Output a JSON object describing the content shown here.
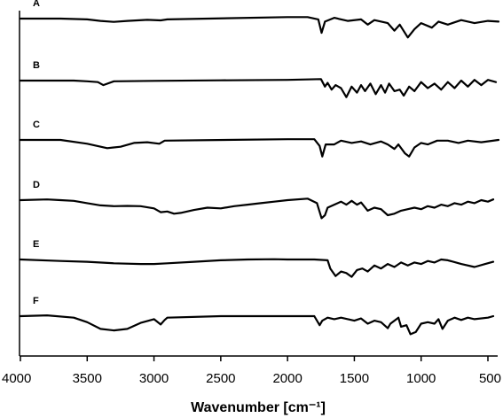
{
  "chart_data": {
    "type": "line",
    "title": "",
    "xlabel": "Wavenumber [cm⁻¹]",
    "ylabel": "",
    "xlim": [
      4000,
      400
    ],
    "x_reversed": true,
    "x_ticks": [
      4000,
      3500,
      3000,
      2500,
      2000,
      1500,
      1000,
      500
    ],
    "x_tick_labels": [
      "4000",
      "3500",
      "3000",
      "2500",
      "2000",
      "1500",
      "1000",
      "500"
    ],
    "grid": false,
    "legend": "none",
    "series": [
      {
        "name": "A",
        "points": [
          [
            4000,
            0.0
          ],
          [
            3700,
            0.0
          ],
          [
            3500,
            -0.05
          ],
          [
            3400,
            -0.15
          ],
          [
            3300,
            -0.22
          ],
          [
            3200,
            -0.15
          ],
          [
            3050,
            -0.08
          ],
          [
            2950,
            -0.12
          ],
          [
            2900,
            -0.05
          ],
          [
            2000,
            0.1
          ],
          [
            1850,
            0.1
          ],
          [
            1770,
            -0.05
          ],
          [
            1745,
            -0.95
          ],
          [
            1720,
            -0.2
          ],
          [
            1650,
            0.05
          ],
          [
            1550,
            -0.15
          ],
          [
            1450,
            -0.05
          ],
          [
            1400,
            -0.4
          ],
          [
            1350,
            -0.1
          ],
          [
            1250,
            -0.3
          ],
          [
            1200,
            -0.8
          ],
          [
            1160,
            -0.4
          ],
          [
            1100,
            -1.25
          ],
          [
            1050,
            -0.7
          ],
          [
            1000,
            -0.3
          ],
          [
            920,
            -0.6
          ],
          [
            870,
            -0.2
          ],
          [
            800,
            -0.4
          ],
          [
            700,
            -0.1
          ],
          [
            600,
            -0.3
          ],
          [
            500,
            -0.15
          ],
          [
            420,
            -0.2
          ]
        ]
      },
      {
        "name": "B",
        "points": [
          [
            4000,
            0.0
          ],
          [
            3600,
            0.0
          ],
          [
            3500,
            -0.05
          ],
          [
            3420,
            -0.1
          ],
          [
            3380,
            -0.3
          ],
          [
            3300,
            -0.05
          ],
          [
            3000,
            -0.02
          ],
          [
            2500,
            0.02
          ],
          [
            2000,
            0.05
          ],
          [
            1750,
            0.1
          ],
          [
            1720,
            -0.4
          ],
          [
            1700,
            -0.15
          ],
          [
            1670,
            -0.6
          ],
          [
            1640,
            -0.3
          ],
          [
            1600,
            -0.5
          ],
          [
            1560,
            -1.1
          ],
          [
            1520,
            -0.4
          ],
          [
            1480,
            -0.8
          ],
          [
            1450,
            -0.3
          ],
          [
            1420,
            -0.7
          ],
          [
            1380,
            -0.2
          ],
          [
            1340,
            -0.9
          ],
          [
            1300,
            -0.3
          ],
          [
            1270,
            -0.8
          ],
          [
            1240,
            -0.2
          ],
          [
            1200,
            -0.7
          ],
          [
            1160,
            -0.6
          ],
          [
            1130,
            -1.0
          ],
          [
            1090,
            -0.4
          ],
          [
            1050,
            -0.7
          ],
          [
            1000,
            -0.1
          ],
          [
            950,
            -0.5
          ],
          [
            900,
            -0.2
          ],
          [
            850,
            -0.6
          ],
          [
            800,
            -0.1
          ],
          [
            750,
            -0.5
          ],
          [
            700,
            0.0
          ],
          [
            650,
            -0.4
          ],
          [
            600,
            0.05
          ],
          [
            550,
            -0.3
          ],
          [
            500,
            0.05
          ],
          [
            440,
            -0.1
          ]
        ]
      },
      {
        "name": "C",
        "points": [
          [
            4000,
            0.0
          ],
          [
            3700,
            0.0
          ],
          [
            3500,
            -0.25
          ],
          [
            3350,
            -0.55
          ],
          [
            3250,
            -0.45
          ],
          [
            3150,
            -0.2
          ],
          [
            3050,
            -0.15
          ],
          [
            2960,
            -0.25
          ],
          [
            2920,
            -0.05
          ],
          [
            2000,
            0.05
          ],
          [
            1800,
            0.05
          ],
          [
            1760,
            -0.4
          ],
          [
            1740,
            -1.1
          ],
          [
            1715,
            -0.3
          ],
          [
            1650,
            -0.3
          ],
          [
            1600,
            -0.05
          ],
          [
            1520,
            -0.2
          ],
          [
            1450,
            -0.1
          ],
          [
            1380,
            -0.3
          ],
          [
            1300,
            -0.1
          ],
          [
            1250,
            -0.3
          ],
          [
            1200,
            -0.6
          ],
          [
            1170,
            -0.3
          ],
          [
            1120,
            -0.9
          ],
          [
            1090,
            -1.1
          ],
          [
            1050,
            -0.5
          ],
          [
            1000,
            -0.2
          ],
          [
            950,
            -0.3
          ],
          [
            880,
            -0.05
          ],
          [
            800,
            -0.05
          ],
          [
            720,
            -0.2
          ],
          [
            650,
            -0.05
          ],
          [
            550,
            -0.15
          ],
          [
            420,
            0.0
          ]
        ]
      },
      {
        "name": "D",
        "points": [
          [
            4000,
            0.0
          ],
          [
            3800,
            0.05
          ],
          [
            3700,
            0.0
          ],
          [
            3600,
            -0.05
          ],
          [
            3500,
            -0.2
          ],
          [
            3400,
            -0.35
          ],
          [
            3300,
            -0.4
          ],
          [
            3200,
            -0.38
          ],
          [
            3100,
            -0.4
          ],
          [
            3000,
            -0.55
          ],
          [
            2950,
            -0.8
          ],
          [
            2900,
            -0.75
          ],
          [
            2850,
            -0.9
          ],
          [
            2800,
            -0.85
          ],
          [
            2700,
            -0.65
          ],
          [
            2600,
            -0.5
          ],
          [
            2500,
            -0.55
          ],
          [
            2400,
            -0.4
          ],
          [
            2300,
            -0.3
          ],
          [
            2200,
            -0.2
          ],
          [
            2100,
            -0.1
          ],
          [
            2000,
            0.0
          ],
          [
            1850,
            0.1
          ],
          [
            1780,
            -0.2
          ],
          [
            1745,
            -1.2
          ],
          [
            1720,
            -1.0
          ],
          [
            1700,
            -0.5
          ],
          [
            1650,
            -0.3
          ],
          [
            1600,
            -0.1
          ],
          [
            1560,
            -0.3
          ],
          [
            1520,
            -0.05
          ],
          [
            1480,
            -0.3
          ],
          [
            1450,
            -0.15
          ],
          [
            1400,
            -0.7
          ],
          [
            1350,
            -0.5
          ],
          [
            1300,
            -0.6
          ],
          [
            1250,
            -1.0
          ],
          [
            1200,
            -0.9
          ],
          [
            1150,
            -0.7
          ],
          [
            1100,
            -0.6
          ],
          [
            1050,
            -0.5
          ],
          [
            1000,
            -0.6
          ],
          [
            950,
            -0.4
          ],
          [
            900,
            -0.5
          ],
          [
            850,
            -0.3
          ],
          [
            800,
            -0.4
          ],
          [
            750,
            -0.2
          ],
          [
            700,
            -0.3
          ],
          [
            650,
            -0.1
          ],
          [
            600,
            -0.2
          ],
          [
            550,
            0.0
          ],
          [
            500,
            -0.1
          ],
          [
            460,
            0.05
          ]
        ]
      },
      {
        "name": "E",
        "points": [
          [
            4000,
            0.0
          ],
          [
            3700,
            -0.1
          ],
          [
            3500,
            -0.15
          ],
          [
            3300,
            -0.25
          ],
          [
            3100,
            -0.3
          ],
          [
            3000,
            -0.3
          ],
          [
            2900,
            -0.25
          ],
          [
            2700,
            -0.15
          ],
          [
            2500,
            -0.05
          ],
          [
            2300,
            0.0
          ],
          [
            2100,
            0.02
          ],
          [
            2000,
            0.0
          ],
          [
            1800,
            0.0
          ],
          [
            1700,
            -0.05
          ],
          [
            1680,
            -0.6
          ],
          [
            1640,
            -1.1
          ],
          [
            1600,
            -0.8
          ],
          [
            1560,
            -0.9
          ],
          [
            1520,
            -1.15
          ],
          [
            1480,
            -0.7
          ],
          [
            1440,
            -0.6
          ],
          [
            1400,
            -0.8
          ],
          [
            1350,
            -0.4
          ],
          [
            1300,
            -0.6
          ],
          [
            1250,
            -0.3
          ],
          [
            1200,
            -0.5
          ],
          [
            1150,
            -0.2
          ],
          [
            1100,
            -0.4
          ],
          [
            1050,
            -0.2
          ],
          [
            1000,
            -0.3
          ],
          [
            950,
            -0.1
          ],
          [
            900,
            -0.2
          ],
          [
            850,
            0.0
          ],
          [
            800,
            -0.05
          ],
          [
            700,
            -0.3
          ],
          [
            600,
            -0.5
          ],
          [
            520,
            -0.3
          ],
          [
            460,
            -0.15
          ]
        ]
      },
      {
        "name": "F",
        "points": [
          [
            4000,
            0.0
          ],
          [
            3800,
            0.05
          ],
          [
            3600,
            -0.1
          ],
          [
            3500,
            -0.4
          ],
          [
            3400,
            -0.85
          ],
          [
            3300,
            -0.95
          ],
          [
            3200,
            -0.85
          ],
          [
            3100,
            -0.45
          ],
          [
            3000,
            -0.2
          ],
          [
            2950,
            -0.55
          ],
          [
            2920,
            -0.25
          ],
          [
            2900,
            -0.1
          ],
          [
            2500,
            0.0
          ],
          [
            2000,
            0.0
          ],
          [
            1800,
            0.0
          ],
          [
            1760,
            -0.6
          ],
          [
            1740,
            -0.3
          ],
          [
            1700,
            -0.1
          ],
          [
            1650,
            -0.2
          ],
          [
            1600,
            -0.1
          ],
          [
            1500,
            -0.3
          ],
          [
            1450,
            -0.15
          ],
          [
            1400,
            -0.5
          ],
          [
            1350,
            -0.3
          ],
          [
            1300,
            -0.4
          ],
          [
            1250,
            -0.8
          ],
          [
            1230,
            -0.5
          ],
          [
            1170,
            -0.1
          ],
          [
            1150,
            -0.7
          ],
          [
            1110,
            -0.6
          ],
          [
            1080,
            -1.2
          ],
          [
            1040,
            -1.05
          ],
          [
            1000,
            -0.5
          ],
          [
            950,
            -0.4
          ],
          [
            900,
            -0.5
          ],
          [
            870,
            -0.2
          ],
          [
            840,
            -0.85
          ],
          [
            800,
            -0.3
          ],
          [
            750,
            -0.1
          ],
          [
            700,
            -0.25
          ],
          [
            650,
            -0.1
          ],
          [
            600,
            -0.2
          ],
          [
            500,
            -0.1
          ],
          [
            460,
            0.0
          ]
        ]
      }
    ]
  }
}
